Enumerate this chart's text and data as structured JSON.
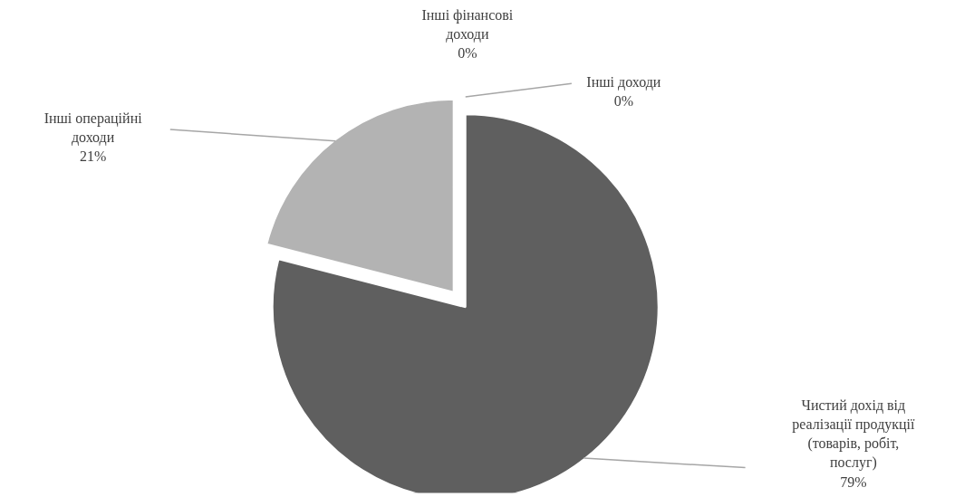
{
  "chart_data": {
    "type": "pie",
    "categories": [
      "Чистий дохід від реалізації продукції (товарів, робіт, послуг)",
      "Інші операційні доходи",
      "Інші фінансові доходи",
      "Інші доходи"
    ],
    "values": [
      79,
      21,
      0,
      0
    ],
    "value_labels": [
      "79%",
      "21%",
      "0%",
      "0%"
    ],
    "colors": [
      "#5f5f5f",
      "#b3b3b3",
      "#8c8c8c",
      "#d9d9d9"
    ]
  }
}
